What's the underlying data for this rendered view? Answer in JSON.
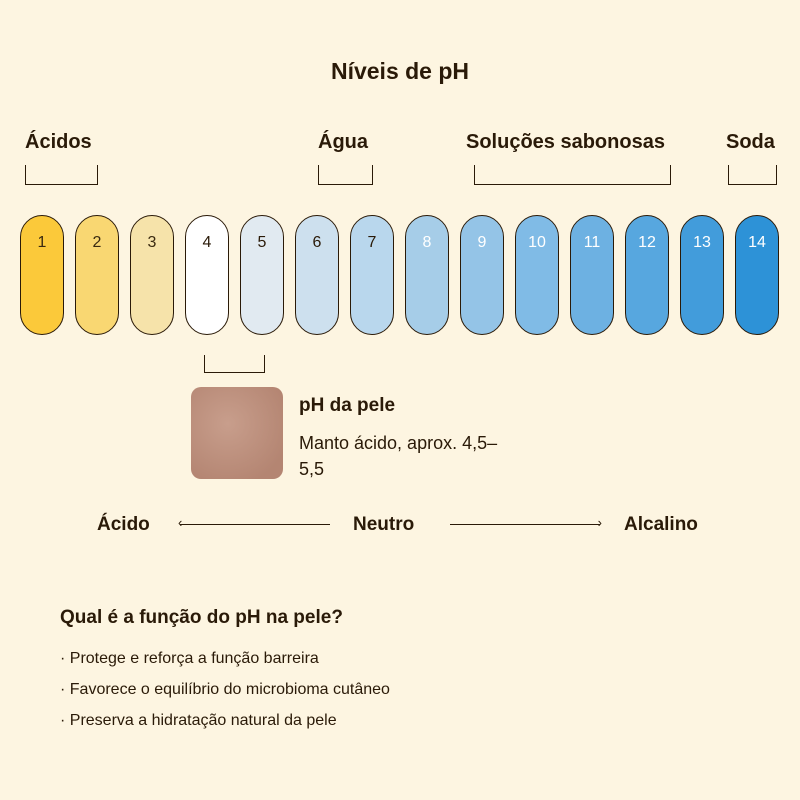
{
  "title": "Níveis de pH",
  "categories": [
    {
      "label": "Ácidos"
    },
    {
      "label": "Água"
    },
    {
      "label": "Soluções sabonosas"
    },
    {
      "label": "Soda"
    }
  ],
  "ph_scale": [
    {
      "value": "1",
      "color": "#fbc93a",
      "text_color": "#3a2a10"
    },
    {
      "value": "2",
      "color": "#f9d772",
      "text_color": "#3a2a10"
    },
    {
      "value": "3",
      "color": "#f6e3aa",
      "text_color": "#3a2a10"
    },
    {
      "value": "4",
      "color": "#ffffff",
      "text_color": "#2a1a08"
    },
    {
      "value": "5",
      "color": "#e1eaf1",
      "text_color": "#2a1a08"
    },
    {
      "value": "6",
      "color": "#cde0ee",
      "text_color": "#2a1a08"
    },
    {
      "value": "7",
      "color": "#b9d7ed",
      "text_color": "#2a1a08"
    },
    {
      "value": "8",
      "color": "#a6cde8",
      "text_color": "#ffffff"
    },
    {
      "value": "9",
      "color": "#94c4e7",
      "text_color": "#ffffff"
    },
    {
      "value": "10",
      "color": "#80bbe6",
      "text_color": "#ffffff"
    },
    {
      "value": "11",
      "color": "#6db1e2",
      "text_color": "#ffffff"
    },
    {
      "value": "12",
      "color": "#57a7df",
      "text_color": "#ffffff"
    },
    {
      "value": "13",
      "color": "#429cdb",
      "text_color": "#ffffff"
    },
    {
      "value": "14",
      "color": "#2d92d7",
      "text_color": "#ffffff"
    }
  ],
  "skin": {
    "heading": "pH da pele",
    "text": "Manto ácido, aprox. 4,5–5,5"
  },
  "scale_labels": {
    "acid": "Ácido",
    "neutral": "Neutro",
    "alkaline": "Alcalino"
  },
  "question": "Qual é a função do pH na pele?",
  "bullets": [
    "· Protege e reforça a função barreira",
    "· Favorece o equilíbrio do microbioma cutâneo",
    "· Preserva a hidratação natural da pele"
  ],
  "colors": {
    "background": "#fdf5e1",
    "text": "#2a1a08"
  }
}
